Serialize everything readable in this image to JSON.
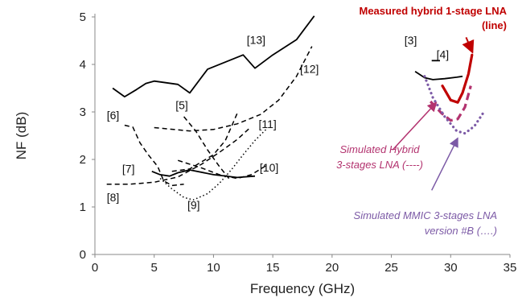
{
  "chart_data": {
    "type": "line",
    "title": "",
    "xlabel": "Frequency (GHz)",
    "ylabel": "NF (dB)",
    "xlim": [
      0,
      35
    ],
    "ylim": [
      0,
      5
    ],
    "xticks": [
      "0",
      "5",
      "10",
      "15",
      "20",
      "25",
      "30",
      "35"
    ],
    "yticks": [
      "0",
      "1",
      "2",
      "3",
      "4",
      "5"
    ],
    "grid": false,
    "colors": {
      "axis": "#888888",
      "black": "#000000",
      "red": "#c00000",
      "magenta": "#b3336f",
      "purple": "#7c5aa6"
    },
    "series": [
      {
        "label": "[13]",
        "style": "solid",
        "color": "#000000",
        "points": [
          [
            1.5,
            3.5
          ],
          [
            2.5,
            3.32
          ],
          [
            3.5,
            3.47
          ],
          [
            4.3,
            3.6
          ],
          [
            5,
            3.65
          ],
          [
            7,
            3.58
          ],
          [
            8,
            3.4
          ],
          [
            9.5,
            3.9
          ],
          [
            12.5,
            4.2
          ],
          [
            13.5,
            3.92
          ],
          [
            15,
            4.2
          ],
          [
            17,
            4.52
          ],
          [
            18.5,
            5.02
          ]
        ]
      },
      {
        "label": "[12]",
        "style": "dashed",
        "color": "#000000",
        "points": [
          [
            5,
            2.67
          ],
          [
            8,
            2.6
          ],
          [
            10,
            2.63
          ],
          [
            12,
            2.75
          ],
          [
            14,
            2.95
          ],
          [
            15.5,
            3.25
          ],
          [
            17,
            3.75
          ],
          [
            18.3,
            4.38
          ]
        ]
      },
      {
        "label": "[6]",
        "style": "dashed",
        "color": "#000000",
        "points": [
          [
            2.5,
            2.72
          ],
          [
            3.2,
            2.68
          ],
          [
            3.8,
            2.35
          ],
          [
            4.5,
            2.1
          ],
          [
            5.3,
            1.85
          ],
          [
            5.8,
            1.55
          ],
          [
            6.5,
            1.45
          ],
          [
            7.5,
            1.48
          ]
        ]
      },
      {
        "label": "[5]",
        "style": "dashed",
        "color": "#000000",
        "points": [
          [
            7.5,
            2.9
          ],
          [
            8.5,
            2.6
          ],
          [
            9.5,
            2.2
          ],
          [
            10.5,
            1.85
          ],
          [
            11.3,
            1.6
          ]
        ]
      },
      {
        "label": "[11]",
        "style": "dashed",
        "color": "#000000",
        "points": [
          [
            6.5,
            1.75
          ],
          [
            8,
            1.8
          ],
          [
            9,
            1.95
          ],
          [
            10,
            2.1
          ],
          [
            11,
            2.4
          ],
          [
            12,
            2.97
          ]
        ]
      },
      {
        "label": "[7]",
        "style": "solid",
        "color": "#000000",
        "points": [
          [
            4.8,
            1.75
          ],
          [
            5.5,
            1.68
          ],
          [
            6.3,
            1.65
          ],
          [
            7,
            1.72
          ],
          [
            8,
            1.78
          ],
          [
            10,
            1.68
          ],
          [
            12,
            1.62
          ],
          [
            13.5,
            1.65
          ]
        ]
      },
      {
        "label": "[10]",
        "style": "dashed",
        "color": "#000000",
        "points": [
          [
            7,
            1.98
          ],
          [
            9,
            1.82
          ],
          [
            10.5,
            1.68
          ],
          [
            12,
            1.6
          ],
          [
            13.2,
            1.68
          ],
          [
            14.5,
            1.88
          ]
        ]
      },
      {
        "label": "[8]",
        "style": "dashed",
        "color": "#000000",
        "points": [
          [
            1,
            1.48
          ],
          [
            3,
            1.48
          ],
          [
            5,
            1.52
          ],
          [
            7,
            1.63
          ],
          [
            9,
            1.9
          ],
          [
            10.5,
            2.15
          ],
          [
            12,
            2.42
          ],
          [
            13,
            2.65
          ]
        ]
      },
      {
        "label": "[9]",
        "style": "dotted",
        "color": "#000000",
        "points": [
          [
            5.5,
            1.6
          ],
          [
            6.5,
            1.38
          ],
          [
            7.5,
            1.2
          ],
          [
            8.3,
            1.15
          ],
          [
            9.5,
            1.28
          ],
          [
            10.5,
            1.5
          ],
          [
            11.5,
            1.78
          ],
          [
            12.5,
            2.1
          ],
          [
            13.5,
            2.4
          ],
          [
            14.5,
            2.65
          ]
        ]
      },
      {
        "label": "[3]",
        "style": "solid",
        "color": "#000000",
        "points": [
          [
            27,
            3.85
          ],
          [
            27.8,
            3.72
          ],
          [
            28.5,
            3.68
          ],
          [
            29.5,
            3.7
          ],
          [
            30.5,
            3.73
          ],
          [
            31,
            3.75
          ]
        ]
      },
      {
        "label": "[4]",
        "style": "solid",
        "color": "#000000",
        "points": [
          [
            28.4,
            4.08
          ],
          [
            29.1,
            4.08
          ]
        ]
      },
      {
        "label": "Measured hybrid 1-stage LNA (line)",
        "style": "solid-thick",
        "color": "#c00000",
        "points": [
          [
            29.3,
            3.55
          ],
          [
            30,
            3.25
          ],
          [
            30.6,
            3.2
          ],
          [
            31,
            3.4
          ],
          [
            31.5,
            3.8
          ],
          [
            31.8,
            4.2
          ]
        ]
      },
      {
        "label": "Simulated Hybrid 3-stages LNA (----)",
        "style": "dashed-thick",
        "color": "#b3336f",
        "points": [
          [
            28.3,
            3.22
          ],
          [
            29.2,
            2.98
          ],
          [
            30,
            2.82
          ],
          [
            30.6,
            2.85
          ],
          [
            31.2,
            3.1
          ],
          [
            31.7,
            3.55
          ]
        ]
      },
      {
        "label": "Simulated MMIC 3-stages LNA version #B (….)",
        "style": "dotted-thick",
        "color": "#7c5aa6",
        "points": [
          [
            27.8,
            3.75
          ],
          [
            28.5,
            3.3
          ],
          [
            29.5,
            2.9
          ],
          [
            30.5,
            2.6
          ],
          [
            31.2,
            2.55
          ],
          [
            32,
            2.7
          ],
          [
            32.8,
            3
          ]
        ]
      }
    ],
    "annotations": {
      "refs": [
        {
          "text": "[13]",
          "x": 12.8,
          "y": 4.43
        },
        {
          "text": "[12]",
          "x": 17.3,
          "y": 3.82
        },
        {
          "text": "[6]",
          "x": 1.0,
          "y": 2.85
        },
        {
          "text": "[5]",
          "x": 6.8,
          "y": 3.06
        },
        {
          "text": "[11]",
          "x": 13.8,
          "y": 2.66
        },
        {
          "text": "[7]",
          "x": 2.3,
          "y": 1.72
        },
        {
          "text": "[10]",
          "x": 13.9,
          "y": 1.75
        },
        {
          "text": "[8]",
          "x": 1.0,
          "y": 1.12
        },
        {
          "text": "[9]",
          "x": 7.8,
          "y": 0.96
        },
        {
          "text": "[3]",
          "x": 26.1,
          "y": 4.42
        },
        {
          "text": "[4]",
          "x": 28.8,
          "y": 4.13
        }
      ],
      "measured": [
        "Measured hybrid 1-stage LNA",
        "(line)"
      ],
      "sim_hybrid": [
        "Simulated Hybrid",
        "3-stages LNA (----)"
      ],
      "sim_mmic": [
        "Simulated MMIC 3-stages LNA",
        "version #B (….)"
      ]
    }
  }
}
